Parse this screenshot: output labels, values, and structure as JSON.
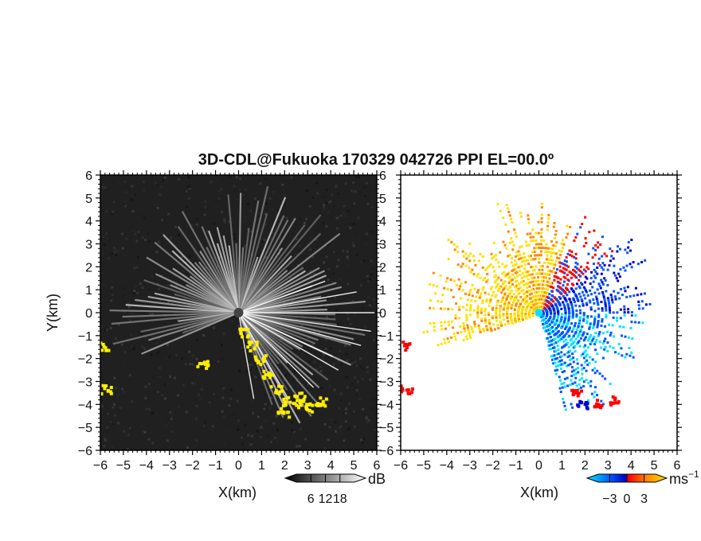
{
  "figure": {
    "title": "3D-CDL@Fukuoka 170329 042726 PPI EL=00.0º"
  },
  "chart_data": [
    {
      "type": "heatmap",
      "panel": "reflectivity",
      "xlabel": "X(km)",
      "ylabel": "Y(km)",
      "xlim": [
        -6,
        6
      ],
      "ylim": [
        -6,
        6
      ],
      "xticks": [
        "−6",
        "−5",
        "−4",
        "−3",
        "−2",
        "−1",
        "0",
        "1",
        "2",
        "3",
        "4",
        "5",
        "6"
      ],
      "yticks": [
        "6",
        "5",
        "4",
        "3",
        "2",
        "1",
        "0",
        "−1",
        "−2",
        "−3",
        "−4",
        "−5",
        "−6"
      ],
      "colorbar": {
        "unit": "dB",
        "range": [
          0,
          24
        ],
        "tick_labels": [
          "6",
          "12",
          "18"
        ],
        "tick_values": [
          6,
          12,
          18
        ],
        "colors": [
          "#000000",
          "#ffffff"
        ]
      },
      "overlay_color": "#ffee00",
      "background": "#202020"
    },
    {
      "type": "heatmap",
      "panel": "doppler_velocity",
      "xlabel": "X(km)",
      "ylabel": "",
      "xlim": [
        -6,
        6
      ],
      "ylim": [
        -6,
        6
      ],
      "xticks": [
        "−6",
        "−5",
        "−4",
        "−3",
        "−2",
        "−1",
        "0",
        "1",
        "2",
        "3",
        "4",
        "5",
        "6"
      ],
      "yticks": [
        "6",
        "5",
        "4",
        "3",
        "2",
        "1",
        "0",
        "−1",
        "−2",
        "−3",
        "−4",
        "−5",
        "−6"
      ],
      "colorbar": {
        "unit": "ms",
        "unit_exponent": "−1",
        "range": [
          -5,
          5
        ],
        "tick_labels": [
          "−3",
          "0",
          "3"
        ],
        "tick_values": [
          -3,
          0,
          3
        ],
        "colors": [
          "#00e5ff",
          "#0055ff",
          "#0000c8",
          "#ff0000",
          "#ff8800",
          "#ffe000"
        ]
      },
      "background": "#ffffff"
    }
  ]
}
